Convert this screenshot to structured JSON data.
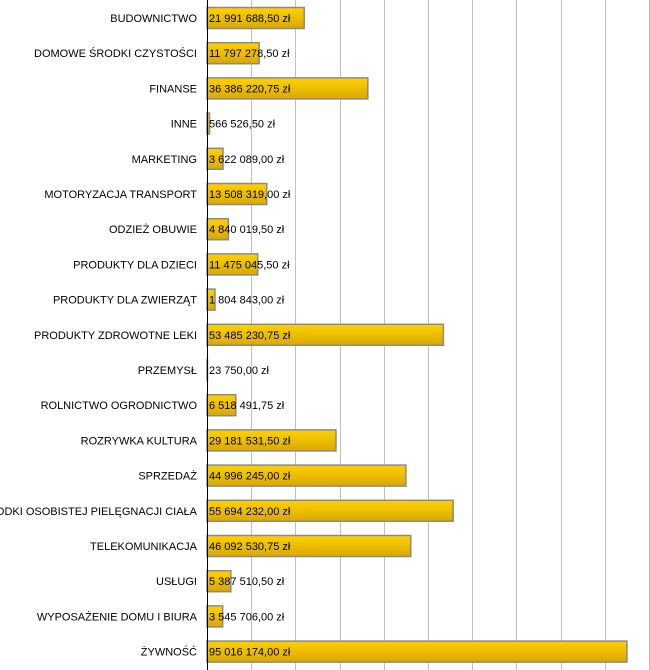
{
  "chart_data": {
    "type": "bar",
    "orientation": "horizontal",
    "categories": [
      "BUDOWNICTWO",
      "DOMOWE ŚRODKI CZYSTOŚCI",
      "FINANSE",
      "INNE",
      "MARKETING",
      "MOTORYZACJA TRANSPORT",
      "ODZIEŻ OBUWIE",
      "PRODUKTY DLA DZIECI",
      "PRODUKTY DLA ZWIERZĄT",
      "PRODUKTY ZDROWOTNE LEKI",
      "PRZEMYSŁ",
      "ROLNICTWO OGRODNICTWO",
      "ROZRYWKA KULTURA",
      "SPRZEDAŻ",
      "ŚRODKI OSOBISTEJ PIELĘGNACJI CIAŁA",
      "TELEKOMUNIKACJA",
      "USŁUGI",
      "WYPOSAŻENIE DOMU I BIURA",
      "ŻYWNOŚĆ"
    ],
    "values": [
      21991688.5,
      11797278.5,
      36386220.75,
      566526.5,
      3622089.0,
      13508319.0,
      4840019.5,
      11475045.5,
      1804843.0,
      53485230.75,
      23750.0,
      6518491.75,
      29181531.5,
      44996245.0,
      55694232.0,
      46092530.75,
      5387510.5,
      3545706.0,
      95016174.0
    ],
    "data_labels": [
      "21 991 688,50 zł",
      "11 797 278,50 zł",
      "36 386 220,75 zł",
      "566 526,50 zł",
      "3 622 089,00 zł",
      "13 508 319,00 zł",
      "4 840 019,50 zł",
      "11 475 045,50 zł",
      "1 804 843,00 zł",
      "53 485 230,75 zł",
      "23 750,00 zł",
      "6 518 491,75 zł",
      "29 181 531,50 zł",
      "44 996 245,00 zł",
      "55 694 232,00 zł",
      "46 092 530,75 zł",
      "5 387 510,50 zł",
      "3 545 706,00 zł",
      "95 016 174,00 zł"
    ],
    "xlim": [
      0,
      100000000
    ],
    "grid_step": 10000000,
    "grid": true,
    "colors": {
      "bar_top": "#ffd200",
      "bar_bottom": "#d9a800",
      "bar_border": "#8a8a8a",
      "grid": "#c0c0c0",
      "axis": "#000000"
    }
  }
}
